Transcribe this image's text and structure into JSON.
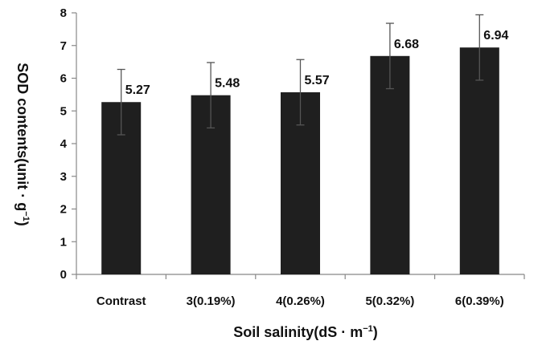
{
  "chart_data": {
    "type": "bar",
    "categories": [
      "Contrast",
      "3(0.19%)",
      "4(0.26%)",
      "5(0.32%)",
      "6(0.39%)"
    ],
    "values": [
      5.27,
      5.48,
      5.57,
      6.68,
      6.94
    ],
    "data_labels": [
      "5.27",
      "5.48",
      "5.57",
      "6.68",
      "6.94"
    ],
    "error": [
      1.0,
      1.0,
      1.0,
      1.0,
      1.0
    ],
    "title": "",
    "xlabel": {
      "main": "Soil salinity(dS · m",
      "sup": "−1",
      "end": ")"
    },
    "ylabel": {
      "main": "SOD contents(unit · g",
      "sup": "−1",
      "end": ")"
    },
    "ylim": [
      0,
      8
    ],
    "yticks": [
      0,
      1,
      2,
      3,
      4,
      5,
      6,
      7,
      8
    ],
    "grid": false,
    "legend": "none",
    "bar_color": "#1f1f1f",
    "axis_color": "#888888",
    "error_color": "#555555"
  }
}
